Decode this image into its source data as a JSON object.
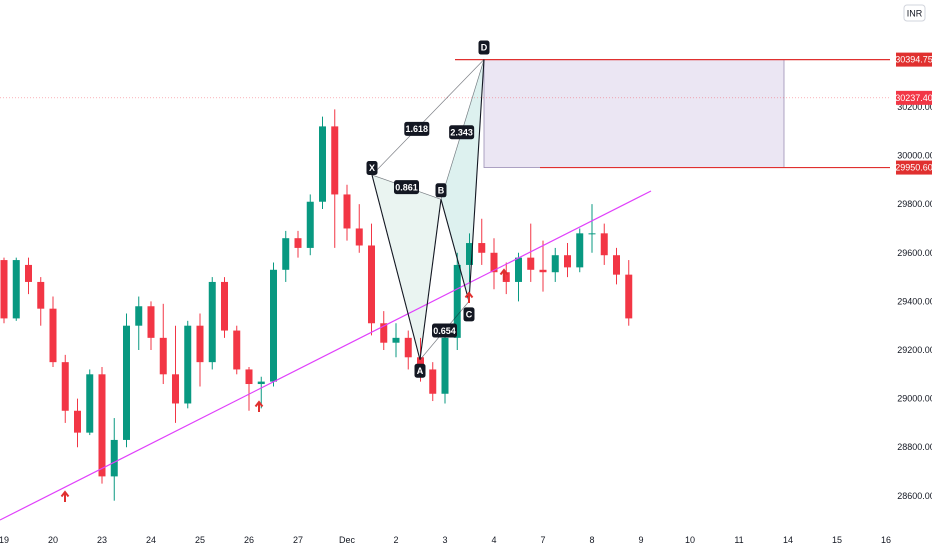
{
  "currency": "INR",
  "colors": {
    "up": "#089981",
    "down": "#f23645",
    "trendline": "#e040fb",
    "pattern_line": "#131722",
    "pattern_fill_left": "#e3f0ec",
    "pattern_fill_right": "#d7efec",
    "box_fill": "#e6e0f0",
    "box_border": "#9b8fb5",
    "level_line": "#e0302f",
    "arrow": "#e0302f",
    "label_bg": "#131722",
    "current_price": "#f23645"
  },
  "chart_data": {
    "type": "candlestick",
    "y_axis": {
      "ticks": [
        "30200.00",
        "30000.00",
        "29800.00",
        "29600.00",
        "29400.00",
        "29200.00",
        "29000.00",
        "28800.00",
        "28600.00"
      ],
      "tick_values": [
        30200,
        30000,
        29800,
        29600,
        29400,
        29200,
        29000,
        28800,
        28600
      ],
      "ylim": [
        28480,
        30640
      ]
    },
    "x_axis": {
      "labels": [
        "19",
        "20",
        "23",
        "24",
        "25",
        "26",
        "27",
        "Dec",
        "2",
        "3",
        "4",
        "7",
        "8",
        "9",
        "10",
        "11",
        "14",
        "15",
        "16"
      ],
      "label_index": [
        0,
        4,
        8,
        12,
        16,
        20,
        24,
        28,
        32,
        36,
        40,
        44,
        48,
        52,
        56,
        60,
        64,
        68,
        72
      ],
      "bars_total": 76
    },
    "candles": [
      [
        29570,
        29580,
        29310,
        29330
      ],
      [
        29330,
        29580,
        29320,
        29570
      ],
      [
        29550,
        29580,
        29430,
        29480
      ],
      [
        29480,
        29500,
        29300,
        29370
      ],
      [
        29370,
        29420,
        29130,
        29150
      ],
      [
        29150,
        29180,
        28900,
        28950
      ],
      [
        28950,
        29000,
        28800,
        28860
      ],
      [
        28860,
        29120,
        28850,
        29100
      ],
      [
        29100,
        29130,
        28650,
        28680
      ],
      [
        28680,
        28920,
        28580,
        28830
      ],
      [
        28830,
        29350,
        28800,
        29300
      ],
      [
        29300,
        29420,
        29200,
        29380
      ],
      [
        29380,
        29400,
        29200,
        29250
      ],
      [
        29250,
        29390,
        29060,
        29100
      ],
      [
        29100,
        29300,
        28900,
        28980
      ],
      [
        28980,
        29320,
        28960,
        29300
      ],
      [
        29300,
        29350,
        29050,
        29150
      ],
      [
        29150,
        29500,
        29120,
        29480
      ],
      [
        29480,
        29500,
        29250,
        29280
      ],
      [
        29280,
        29300,
        29100,
        29120
      ],
      [
        29120,
        29130,
        28950,
        29060
      ],
      [
        29060,
        29090,
        28960,
        29070
      ],
      [
        29070,
        29560,
        29050,
        29530
      ],
      [
        29530,
        29690,
        29480,
        29660
      ],
      [
        29660,
        29690,
        29580,
        29620
      ],
      [
        29620,
        29840,
        29590,
        29810
      ],
      [
        29810,
        30160,
        29780,
        30120
      ],
      [
        30120,
        30190,
        29620,
        29840
      ],
      [
        29840,
        29880,
        29650,
        29700
      ],
      [
        29700,
        29800,
        29600,
        29630
      ],
      [
        29630,
        29720,
        29260,
        29310
      ],
      [
        29310,
        29360,
        29200,
        29230
      ],
      [
        29230,
        29310,
        29170,
        29250
      ],
      [
        29250,
        29280,
        29120,
        29170
      ],
      [
        29170,
        29250,
        29070,
        29120
      ],
      [
        29120,
        29150,
        28990,
        29020
      ],
      [
        29020,
        29270,
        28980,
        29250
      ],
      [
        29250,
        29600,
        29200,
        29550
      ],
      [
        29550,
        29680,
        29480,
        29640
      ],
      [
        29640,
        29740,
        29550,
        29600
      ],
      [
        29600,
        29660,
        29450,
        29520
      ],
      [
        29520,
        29560,
        29430,
        29480
      ],
      [
        29480,
        29600,
        29400,
        29580
      ],
      [
        29580,
        29720,
        29480,
        29530
      ],
      [
        29530,
        29650,
        29440,
        29520
      ],
      [
        29520,
        29620,
        29480,
        29590
      ],
      [
        29590,
        29640,
        29500,
        29540
      ],
      [
        29540,
        29700,
        29520,
        29680
      ],
      [
        29680,
        29800,
        29600,
        29680
      ],
      [
        29680,
        29720,
        29550,
        29590
      ],
      [
        29590,
        29620,
        29470,
        29510
      ],
      [
        29510,
        29570,
        29300,
        29330
      ],
      [
        29330,
        29550,
        29300,
        29510
      ],
      [
        29510,
        29550,
        29440,
        29480
      ],
      [
        29480,
        29660,
        29450,
        29610
      ],
      [
        29610,
        29750,
        29560,
        29720
      ],
      [
        29720,
        29790,
        29700,
        29780
      ],
      [
        29780,
        29920,
        29750,
        29900
      ],
      [
        29900,
        29960,
        29820,
        29840
      ],
      [
        29840,
        29880,
        29720,
        29800
      ],
      [
        29800,
        29860,
        29480,
        29520
      ],
      [
        29520,
        29650,
        29480,
        29600
      ],
      [
        29600,
        29680,
        29320,
        29350
      ],
      [
        29350,
        29400,
        29280,
        29370
      ],
      [
        29370,
        29480,
        29260,
        29320
      ],
      [
        29320,
        29480,
        29150,
        29270
      ],
      [
        29270,
        29330,
        29130,
        29170
      ],
      [
        29170,
        29460,
        29160,
        29430
      ],
      [
        29430,
        29520,
        29350,
        29480
      ],
      [
        29480,
        29850,
        29450,
        29820
      ],
      [
        29820,
        29880,
        29720,
        29760
      ],
      [
        29760,
        29770,
        29560,
        29600
      ],
      [
        29600,
        29640,
        29520,
        29560
      ],
      [
        29560,
        29660,
        29400,
        29470
      ],
      [
        29470,
        29560,
        29360,
        29420
      ],
      [
        29420,
        29510,
        29400,
        29480
      ]
    ],
    "pattern": {
      "points": [
        {
          "label": "X",
          "bar": 372,
          "price": 29920
        },
        {
          "label": "A",
          "bar": 420,
          "price": 29160
        },
        {
          "label": "B",
          "bar": 441,
          "price": 29820
        },
        {
          "label": "C",
          "bar": 469,
          "price": 29400
        },
        {
          "label": "D",
          "bar": 484,
          "price": 30395
        }
      ],
      "ratios": [
        "1.618",
        "2.343",
        "0.861",
        "0.654"
      ]
    },
    "levels": {
      "upper": "30394.75",
      "upper_value": 30394.75,
      "lower": "29950.60",
      "lower_value": 29950.6,
      "current": "30237.40",
      "current_value": 30237.4
    }
  }
}
